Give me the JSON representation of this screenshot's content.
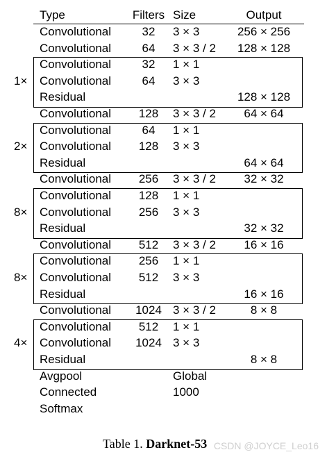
{
  "header": {
    "type": "Type",
    "filters": "Filters",
    "size": "Size",
    "output": "Output"
  },
  "rows": [
    {
      "type": "Convolutional",
      "filters": "32",
      "size": "3 × 3",
      "output": "256 × 256"
    },
    {
      "type": "Convolutional",
      "filters": "64",
      "size": "3 × 3 / 2",
      "output": "128 × 128"
    },
    {
      "type": "Convolutional",
      "filters": "32",
      "size": "1 × 1",
      "output": ""
    },
    {
      "type": "Convolutional",
      "filters": "64",
      "size": "3 × 3",
      "output": ""
    },
    {
      "type": "Residual",
      "filters": "",
      "size": "",
      "output": "128 × 128"
    },
    {
      "type": "Convolutional",
      "filters": "128",
      "size": "3 × 3 / 2",
      "output": "64 × 64"
    },
    {
      "type": "Convolutional",
      "filters": "64",
      "size": "1 × 1",
      "output": ""
    },
    {
      "type": "Convolutional",
      "filters": "128",
      "size": "3 × 3",
      "output": ""
    },
    {
      "type": "Residual",
      "filters": "",
      "size": "",
      "output": "64 × 64"
    },
    {
      "type": "Convolutional",
      "filters": "256",
      "size": "3 × 3 / 2",
      "output": "32 × 32"
    },
    {
      "type": "Convolutional",
      "filters": "128",
      "size": "1 × 1",
      "output": ""
    },
    {
      "type": "Convolutional",
      "filters": "256",
      "size": "3 × 3",
      "output": ""
    },
    {
      "type": "Residual",
      "filters": "",
      "size": "",
      "output": "32 × 32"
    },
    {
      "type": "Convolutional",
      "filters": "512",
      "size": "3 × 3 / 2",
      "output": "16 × 16"
    },
    {
      "type": "Convolutional",
      "filters": "256",
      "size": "1 × 1",
      "output": ""
    },
    {
      "type": "Convolutional",
      "filters": "512",
      "size": "3 × 3",
      "output": ""
    },
    {
      "type": "Residual",
      "filters": "",
      "size": "",
      "output": "16 × 16"
    },
    {
      "type": "Convolutional",
      "filters": "1024",
      "size": "3 × 3 / 2",
      "output": "8 × 8"
    },
    {
      "type": "Convolutional",
      "filters": "512",
      "size": "1 × 1",
      "output": ""
    },
    {
      "type": "Convolutional",
      "filters": "1024",
      "size": "3 × 3",
      "output": ""
    },
    {
      "type": "Residual",
      "filters": "",
      "size": "",
      "output": "8 × 8"
    },
    {
      "type": "Avgpool",
      "filters": "",
      "size": "Global",
      "output": ""
    },
    {
      "type": "Connected",
      "filters": "",
      "size": "1000",
      "output": ""
    },
    {
      "type": "Softmax",
      "filters": "",
      "size": "",
      "output": ""
    }
  ],
  "blocks": [
    {
      "multiplier": "1×"
    },
    {
      "multiplier": "2×"
    },
    {
      "multiplier": "8×"
    },
    {
      "multiplier": "8×"
    },
    {
      "multiplier": "4×"
    }
  ],
  "caption": {
    "prefix": "Table 1. ",
    "name": "Darknet-53"
  },
  "watermark": "CSDN @JOYCE_Leo16"
}
